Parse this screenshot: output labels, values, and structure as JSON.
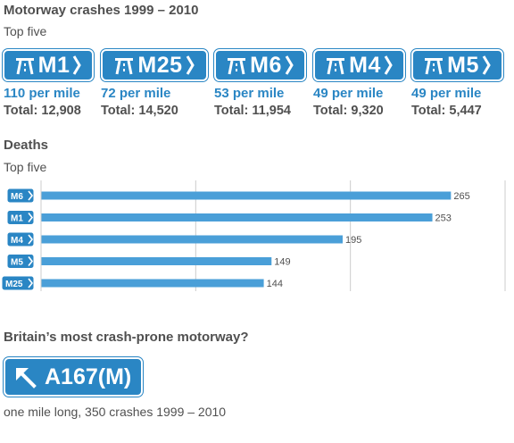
{
  "title": "Motorway crashes 1999 – 2010",
  "subtitle": "Top five",
  "signs": [
    {
      "name": "M1",
      "rate": "110 per mile",
      "total": "Total: 12,908"
    },
    {
      "name": "M25",
      "rate": "72 per mile",
      "total": "Total: 14,520"
    },
    {
      "name": "M6",
      "rate": "53 per mile",
      "total": "Total: 11,954"
    },
    {
      "name": "M4",
      "rate": "49 per mile",
      "total": "Total: 9,320"
    },
    {
      "name": "M5",
      "rate": "49 per mile",
      "total": "Total: 5,447"
    }
  ],
  "colors": {
    "sign_blue": "#2a86c4",
    "bar": "#4a9fd8",
    "grid": "#cccccc"
  },
  "chart_data": {
    "type": "bar",
    "orientation": "horizontal",
    "title": "Deaths",
    "subtitle": "Top five",
    "categories": [
      "M6",
      "M1",
      "M4",
      "M5",
      "M25"
    ],
    "values": [
      265,
      253,
      195,
      149,
      144
    ],
    "xlim": [
      0,
      300
    ],
    "grid": true,
    "data_labels": true
  },
  "feature": {
    "heading": "Britain’s most crash-prone motorway?",
    "sign_label": "A167(M)",
    "caption": "one mile long, 350 crashes 1999 – 2010"
  }
}
